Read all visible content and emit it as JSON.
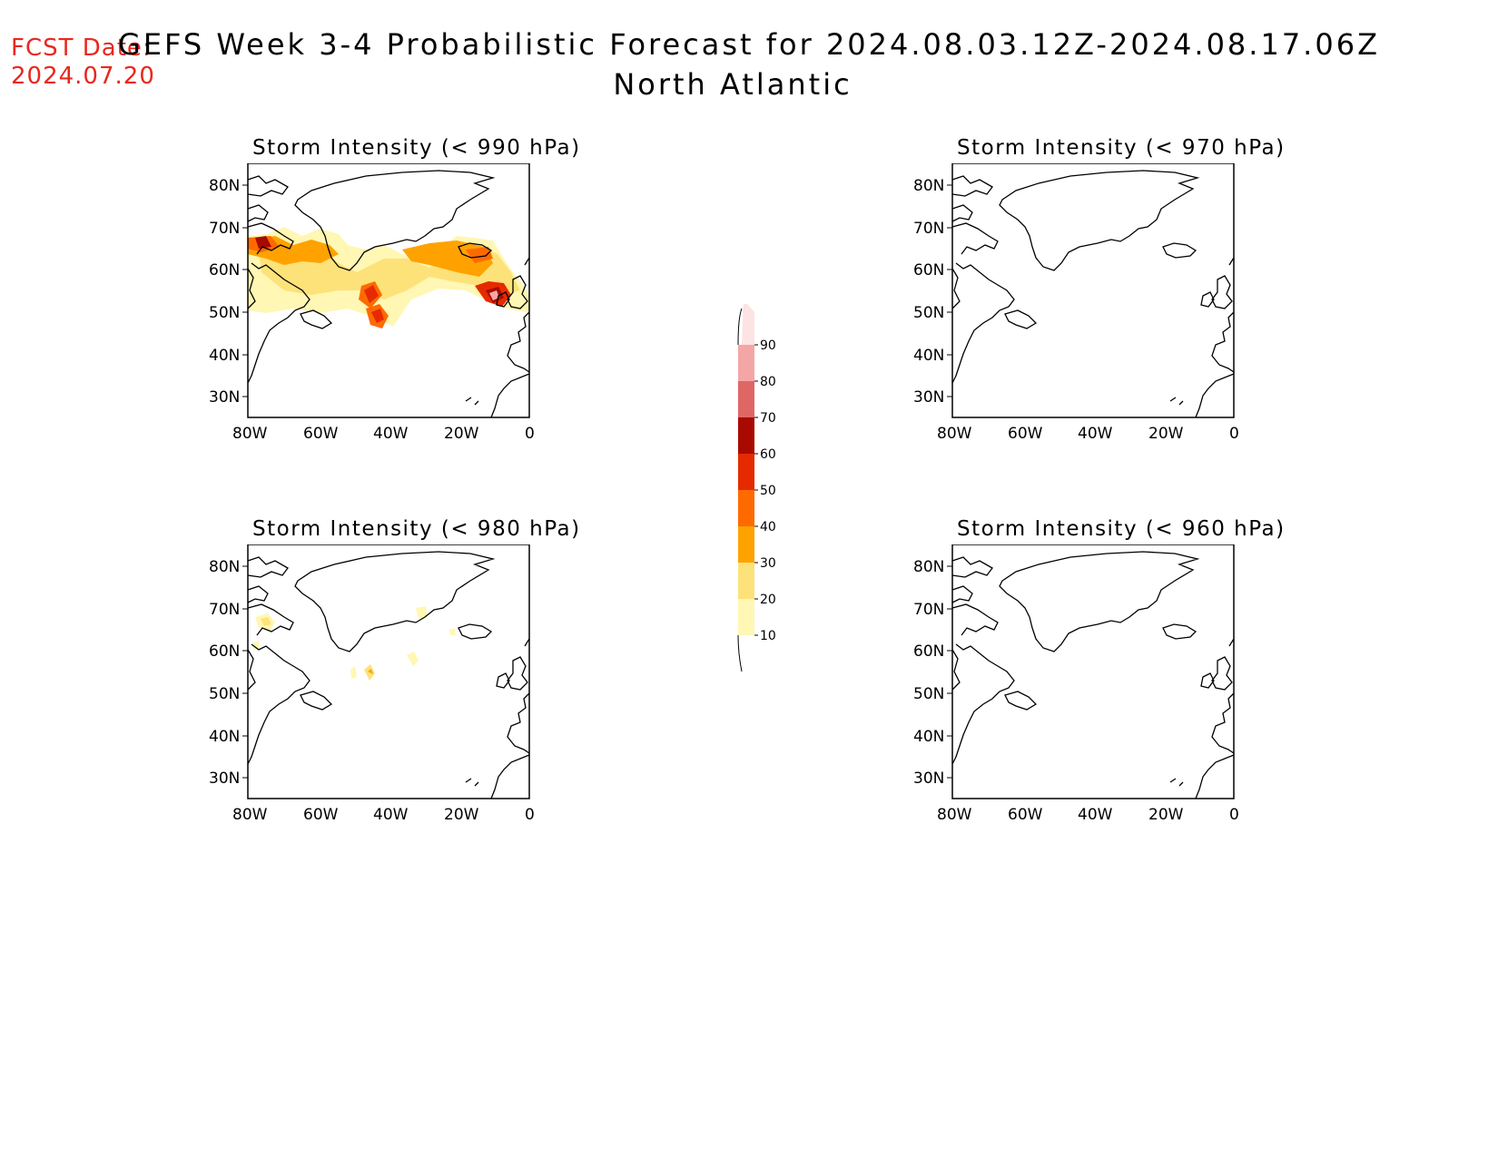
{
  "header": {
    "fcst_label": "FCST Date:",
    "fcst_date": "2024.07.20",
    "title": "GEFS Week 3-4 Probabilistic Forecast for 2024.08.03.12Z-2024.08.17.06Z",
    "subtitle": "North Atlantic"
  },
  "panels": [
    {
      "title": "Storm Intensity (< 990 hPa)",
      "has_data": true
    },
    {
      "title": "Storm Intensity (< 970 hPa)",
      "has_data": false
    },
    {
      "title": "Storm Intensity (< 980 hPa)",
      "has_data": true
    },
    {
      "title": "Storm Intensity (< 960 hPa)",
      "has_data": false
    }
  ],
  "axes": {
    "lon_ticks": [
      "80W",
      "60W",
      "40W",
      "20W",
      "0"
    ],
    "lat_ticks": [
      "80N",
      "70N",
      "60N",
      "50N",
      "40N",
      "30N"
    ],
    "lon_range": [
      -80,
      0
    ],
    "lat_range": [
      25,
      85
    ]
  },
  "colorbar": {
    "levels": [
      "10",
      "20",
      "30",
      "40",
      "50",
      "60",
      "70",
      "80",
      "90"
    ],
    "colors": [
      "#fff7b3",
      "#fde27a",
      "#ffa200",
      "#ff6a00",
      "#e62a00",
      "#a80a00",
      "#e06666",
      "#f4a6a6",
      "#fde3e3"
    ]
  }
}
